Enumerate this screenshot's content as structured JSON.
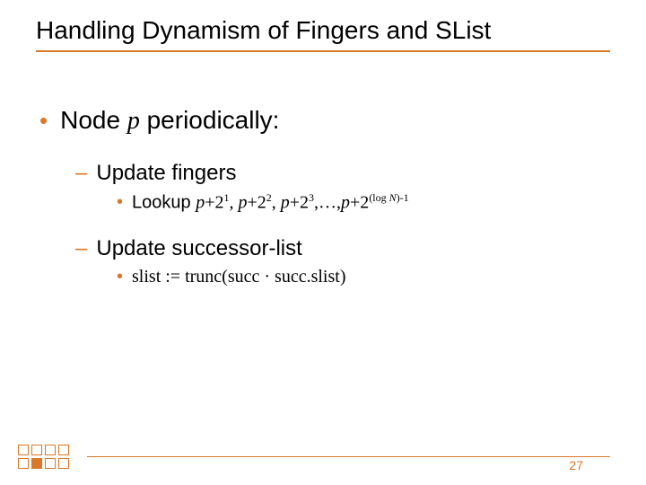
{
  "colors": {
    "accent": "#d97828",
    "text": "#000000",
    "background": "#ffffff"
  },
  "title": "Handling Dynamism of Fingers and SList",
  "main_bullet": {
    "prefix": "Node ",
    "var": "p",
    "suffix": " periodically:"
  },
  "sub1": {
    "heading": "Update fingers",
    "detail_lead": "Lookup ",
    "terms": {
      "var": "p",
      "plus": "+2",
      "exps": [
        "1",
        "2",
        "3"
      ],
      "sep": ", ",
      "ellipsis": ",…,",
      "last_exp_prefix": "(log ",
      "last_exp_var": "N",
      "last_exp_suffix": ")-1"
    }
  },
  "sub2": {
    "heading": "Update successor-list",
    "detail": "slist := trunc(succ · succ.slist)"
  },
  "footer": {
    "squares": [
      "outline",
      "outline",
      "outline",
      "outline",
      "outline",
      "fill",
      "outline",
      "outline"
    ],
    "page": "27"
  }
}
